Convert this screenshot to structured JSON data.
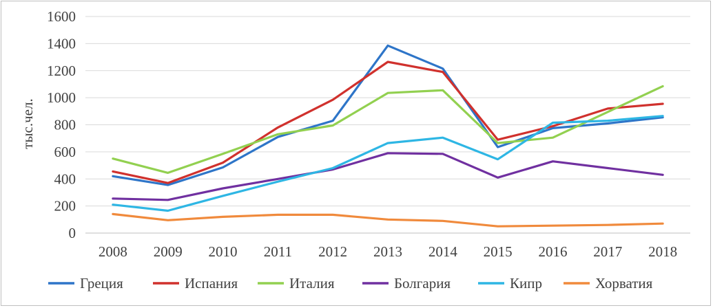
{
  "chart_data": {
    "type": "line",
    "title": "",
    "xlabel": "",
    "ylabel": "тыс.чел.",
    "ylim": [
      0,
      1600
    ],
    "yticks": [
      "0",
      "200",
      "400",
      "600",
      "800",
      "1000",
      "1200",
      "1400",
      "1600"
    ],
    "categories": [
      "2008",
      "2009",
      "2010",
      "2011",
      "2012",
      "2013",
      "2014",
      "2015",
      "2016",
      "2017",
      "2018"
    ],
    "grid": true,
    "legend_position": "bottom",
    "series": [
      {
        "name": "Греция",
        "color": "#2e75c8",
        "values": [
          420,
          355,
          485,
          710,
          830,
          1385,
          1215,
          635,
          775,
          810,
          855
        ]
      },
      {
        "name": "Испания",
        "color": "#d0312d",
        "values": [
          455,
          370,
          520,
          780,
          985,
          1265,
          1190,
          690,
          790,
          920,
          955
        ]
      },
      {
        "name": "Италия",
        "color": "#92d050",
        "values": [
          550,
          445,
          585,
          730,
          795,
          1035,
          1055,
          665,
          705,
          895,
          1085
        ]
      },
      {
        "name": "Болгария",
        "color": "#7030a0",
        "values": [
          255,
          245,
          330,
          400,
          470,
          590,
          585,
          410,
          530,
          480,
          430
        ]
      },
      {
        "name": "Кипр",
        "color": "#2eb6e4",
        "values": [
          210,
          165,
          275,
          380,
          480,
          665,
          705,
          545,
          815,
          830,
          865
        ]
      },
      {
        "name": "Хорватия",
        "color": "#f08a3c",
        "values": [
          140,
          95,
          120,
          135,
          135,
          100,
          90,
          50,
          55,
          60,
          70
        ]
      }
    ]
  }
}
